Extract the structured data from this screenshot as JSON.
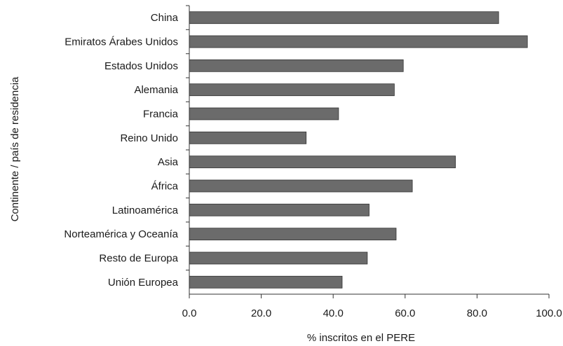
{
  "chart_data": {
    "type": "bar",
    "orientation": "horizontal",
    "title": "",
    "xlabel": "% inscritos en el PERE",
    "ylabel": "Continente / país de residencia",
    "xlim": [
      0,
      100
    ],
    "xticks": [
      "0.0",
      "20.0",
      "40.0",
      "60.0",
      "80.0",
      "100.0"
    ],
    "categories": [
      "China",
      "Emiratos Árabes Unidos",
      "Estados Unidos",
      "Alemania",
      "Francia",
      "Reino Unido",
      "Asia",
      "África",
      "Latinoamérica",
      "Norteamérica y Oceanía",
      "Resto de Europa",
      "Unión Europea"
    ],
    "values": [
      86,
      94,
      59.5,
      57,
      41.5,
      32.5,
      74,
      62,
      50,
      57.5,
      49.5,
      42.5
    ],
    "bar_color": "#6b6b6b",
    "grid": false,
    "legend": "none"
  }
}
